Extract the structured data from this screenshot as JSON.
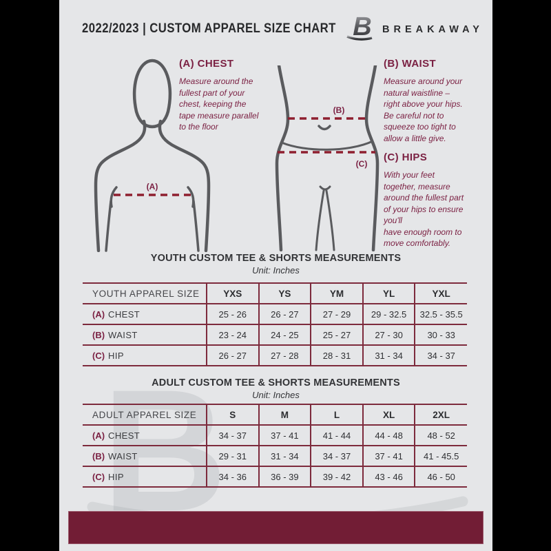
{
  "header": {
    "title": "2022/2023  |  CUSTOM APPAREL SIZE CHART",
    "brand": "BREAKAWAY",
    "logo_icon": "breakaway-b-logo",
    "logo_letter": "B"
  },
  "measure_guide": {
    "chest": {
      "title": "(A) CHEST",
      "text": "Measure around the\nfullest part of your\nchest, keeping the\ntape measure parallel\nto the floor"
    },
    "waist": {
      "title": "(B) WAIST",
      "text": "Measure around your\nnatural waistline –\nright above your hips.\nBe careful not to\nsqueeze too tight to\nallow a little give."
    },
    "hips": {
      "title": "(C) HIPS",
      "text": "With your feet\ntogether, measure\naround the fullest part\nof your hips to ensure\nyou'll\nhave enough room to\nmove comfortably."
    },
    "labels": {
      "chest": "(A)",
      "waist": "(B)",
      "hips": "(C)"
    }
  },
  "youth_table": {
    "title": "YOUTH CUSTOM TEE & SHORTS MEASUREMENTS",
    "unit": "Unit: Inches",
    "label_header": "YOUTH APPAREL SIZE",
    "columns": [
      "YXS",
      "YS",
      "YM",
      "YL",
      "YXL"
    ],
    "rows": [
      {
        "prefix": "(A)",
        "label": "CHEST",
        "values": [
          "25 - 26",
          "26 - 27",
          "27 - 29",
          "29 - 32.5",
          "32.5 - 35.5"
        ]
      },
      {
        "prefix": "(B)",
        "label": "WAIST",
        "values": [
          "23 - 24",
          "24 - 25",
          "25 - 27",
          "27 - 30",
          "30 - 33"
        ]
      },
      {
        "prefix": "(C)",
        "label": "HIP",
        "values": [
          "26 - 27",
          "27 - 28",
          "28 - 31",
          "31 - 34",
          "34 - 37"
        ]
      }
    ]
  },
  "adult_table": {
    "title": "ADULT CUSTOM TEE & SHORTS MEASUREMENTS",
    "unit": "Unit: Inches",
    "label_header": "ADULT APPAREL SIZE",
    "columns": [
      "S",
      "M",
      "L",
      "XL",
      "2XL"
    ],
    "rows": [
      {
        "prefix": "(A)",
        "label": "CHEST",
        "values": [
          "34 - 37",
          "37 - 41",
          "41 - 44",
          "44 - 48",
          "48 - 52"
        ]
      },
      {
        "prefix": "(B)",
        "label": "WAIST",
        "values": [
          "29 - 31",
          "31 - 34",
          "34 - 37",
          "37 - 41",
          "41 - 45.5"
        ]
      },
      {
        "prefix": "(C)",
        "label": "HIP",
        "values": [
          "34 - 36",
          "36 - 39",
          "39 - 42",
          "43 - 46",
          "46 - 50"
        ]
      }
    ]
  },
  "watermark_letter": "B",
  "colors": {
    "page_background": "#e5e6e8",
    "outer_background": "#000000",
    "maroon_text": "#7b2143",
    "table_border": "#7d2a3c",
    "dashed_line": "#8e1f2f",
    "footer_bar": "#721d35",
    "figure_outline": "#5a5b5e",
    "dark_text": "#2c2d30"
  }
}
